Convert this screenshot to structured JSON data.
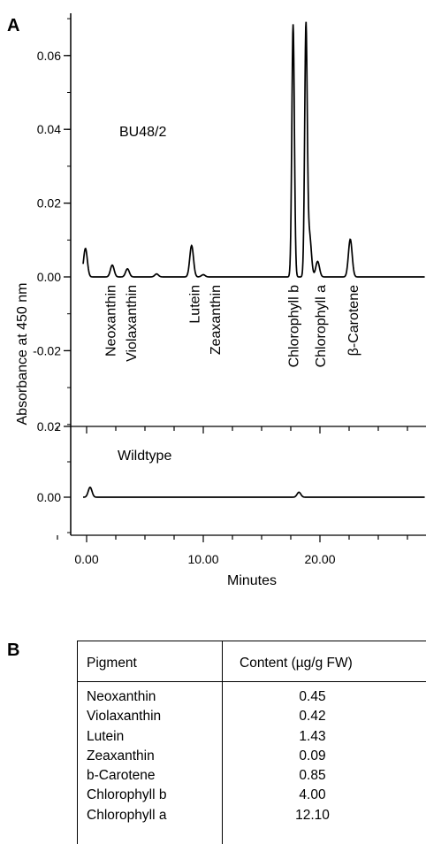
{
  "panel_a_label": "A",
  "panel_b_label": "B",
  "chart_data": {
    "type": "line",
    "ylabel": "Absorbance at 450 nm",
    "xlabel": "Minutes",
    "xlim": [
      -2.5,
      29
    ],
    "x_ticks": [
      0,
      10,
      20
    ],
    "x_tick_labels": [
      "0.00",
      "10.00",
      "20.00"
    ],
    "panels": [
      {
        "name": "BU48/2",
        "ylim": [
          -0.04,
          0.07
        ],
        "y_ticks": [
          0.06,
          0.04,
          0.02,
          0.0,
          -0.02
        ],
        "y_tick_labels": [
          "0.06",
          "0.04",
          "0.02",
          "0.00",
          "-0.02"
        ],
        "peaks": [
          {
            "x": -0.1,
            "y": 0.0077
          },
          {
            "x": 2.2,
            "y": 0.0032
          },
          {
            "x": 3.5,
            "y": 0.0022
          },
          {
            "x": 6.0,
            "y": 0.0008
          },
          {
            "x": 9.0,
            "y": 0.0085
          },
          {
            "x": 10.0,
            "y": 0.0006
          },
          {
            "x": 17.7,
            "y": 0.0685
          },
          {
            "x": 18.8,
            "y": 0.0672
          },
          {
            "x": 19.1,
            "y": 0.0115
          },
          {
            "x": 19.8,
            "y": 0.0042
          },
          {
            "x": 22.6,
            "y": 0.0102
          }
        ],
        "annotations": [
          {
            "label": "Neoxanthin",
            "x": 2.0
          },
          {
            "label": "Violaxanthin",
            "x": 3.8
          },
          {
            "label": "Lutein",
            "x": 9.2
          },
          {
            "label": "Zeaxanthin",
            "x": 11.0
          },
          {
            "label": "Chlorophyll b",
            "x": 17.7
          },
          {
            "label": "Chlorophyll a",
            "x": 20.0
          },
          {
            "label": "β-Carotene",
            "x": 22.8
          }
        ]
      },
      {
        "name": "Wildtype",
        "ylim": [
          -0.01,
          0.02
        ],
        "y_ticks": [
          0.02,
          0.0
        ],
        "y_tick_labels": [
          "0.02",
          "0.00"
        ],
        "peaks": [
          {
            "x": 0.3,
            "y": 0.0028
          },
          {
            "x": 18.2,
            "y": 0.0014
          }
        ]
      }
    ]
  },
  "table": {
    "headers": [
      "Pigment",
      "Content (µg/g FW)"
    ],
    "rows": [
      {
        "pigment": "Neoxanthin",
        "content": "0.45"
      },
      {
        "pigment": "Violaxanthin",
        "content": "0.42"
      },
      {
        "pigment": "Lutein",
        "content": "1.43"
      },
      {
        "pigment": "Zeaxanthin",
        "content": "0.09"
      },
      {
        "pigment": "b-Carotene",
        "content": "0.85"
      },
      {
        "pigment": "Chlorophyll b",
        "content": "4.00"
      },
      {
        "pigment": "Chlorophyll a",
        "content": "12.10"
      }
    ]
  }
}
